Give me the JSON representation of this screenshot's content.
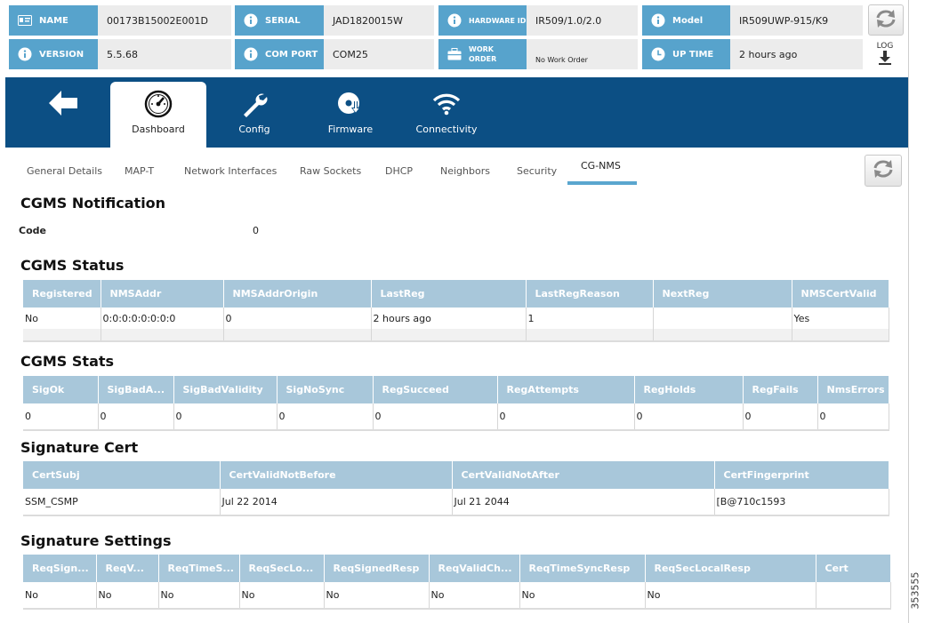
{
  "info": {
    "name_label": "NAME",
    "name_value": "00173B15002E001D",
    "serial_label": "SERIAL",
    "serial_value": "JAD1820015W",
    "hardware_label": "HARDWARE ID",
    "hardware_value": "IR509/1.0/2.0",
    "model_label": "Model",
    "model_value": "IR509UWP-915/K9",
    "version_label": "VERSION",
    "version_value": "5.5.68",
    "comport_label": "COM PORT",
    "comport_value": "COM25",
    "workorder_label_1": "WORK",
    "workorder_label_2": "ORDER",
    "workorder_value": "No Work Order",
    "uptime_label": "UP TIME",
    "uptime_value": "2 hours ago",
    "log_label": "LOG"
  },
  "nav": {
    "tabs": [
      {
        "label": "Dashboard",
        "icon": "gauge-icon"
      },
      {
        "label": "Config",
        "icon": "wrench-icon"
      },
      {
        "label": "Firmware",
        "icon": "disc-download-icon"
      },
      {
        "label": "Connectivity",
        "icon": "wifi-icon"
      }
    ],
    "active": "Dashboard"
  },
  "subtabs": {
    "items": [
      "General Details",
      "MAP-T",
      "Network Interfaces",
      "Raw Sockets",
      "DHCP",
      "Neighbors",
      "Security",
      "CG-NMS"
    ],
    "active": "CG-NMS"
  },
  "notification": {
    "title": "CGMS Notification",
    "code_label": "Code",
    "code_value": "0"
  },
  "status": {
    "title": "CGMS Status",
    "columns": [
      "Registered",
      "NMSAddr",
      "NMSAddrOrigin",
      "LastReg",
      "LastRegReason",
      "NextReg",
      "NMSCertValid"
    ],
    "rows": [
      [
        "No",
        "0:0:0:0:0:0:0:0",
        "0",
        "2 hours ago",
        "1",
        "",
        "Yes"
      ]
    ]
  },
  "stats": {
    "title": "CGMS Stats",
    "columns": [
      "SigOk",
      "SigBadA...",
      "SigBadValidity",
      "SigNoSync",
      "RegSucceed",
      "RegAttempts",
      "RegHolds",
      "RegFails",
      "NmsErrors"
    ],
    "rows": [
      [
        "0",
        "0",
        "0",
        "0",
        "0",
        "0",
        "0",
        "0",
        "0"
      ]
    ]
  },
  "cert": {
    "title": "Signature Cert",
    "columns": [
      "CertSubj",
      "CertValidNotBefore",
      "CertValidNotAfter",
      "CertFingerprint"
    ],
    "rows": [
      [
        "SSM_CSMP",
        "Jul 22 2014",
        "Jul 21 2044",
        "[B@710c1593"
      ]
    ]
  },
  "settings": {
    "title": "Signature Settings",
    "columns": [
      "ReqSign...",
      "ReqV...",
      "ReqTimeS...",
      "ReqSecLo...",
      "ReqSignedResp",
      "ReqValidCh...",
      "ReqTimeSyncResp",
      "ReqSecLocalResp",
      "Cert"
    ],
    "rows": [
      [
        "No",
        "No",
        "No",
        "No",
        "No",
        "No",
        "No",
        "No",
        ""
      ]
    ]
  },
  "figure_number": "353555",
  "colors": {
    "label_blue": "#57a3cc",
    "nav_blue": "#0c4f84",
    "table_header": "#a8c7da",
    "tab_underline": "#5aa6cf"
  }
}
